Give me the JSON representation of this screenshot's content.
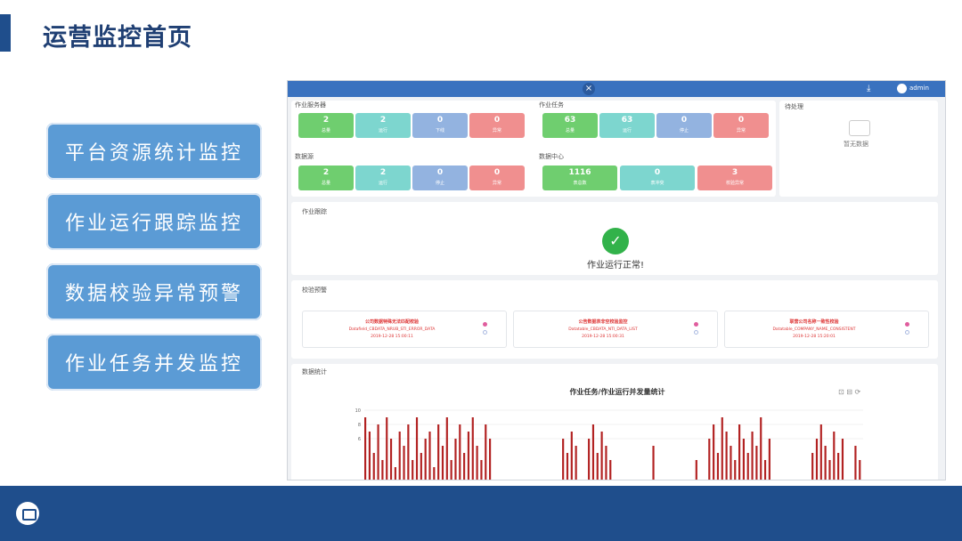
{
  "page": {
    "title": "运营监控首页"
  },
  "menu": [
    "平台资源统计监控",
    "作业运行跟踪监控",
    "数据校验异常预警",
    "作业任务并发监控"
  ],
  "app": {
    "close": "×",
    "download": "⤓",
    "user": "admin",
    "job_server": {
      "title": "作业服务器",
      "tiles": [
        {
          "value": "2",
          "label": "总量"
        },
        {
          "value": "2",
          "label": "运行"
        },
        {
          "value": "0",
          "label": "下线"
        },
        {
          "value": "0",
          "label": "异常"
        }
      ]
    },
    "job_task": {
      "title": "作业任务",
      "tiles": [
        {
          "value": "63",
          "label": "总量"
        },
        {
          "value": "63",
          "label": "运行"
        },
        {
          "value": "0",
          "label": "停止"
        },
        {
          "value": "0",
          "label": "异常"
        }
      ]
    },
    "datasource": {
      "title": "数据源",
      "tiles": [
        {
          "value": "2",
          "label": "总量"
        },
        {
          "value": "2",
          "label": "运行"
        },
        {
          "value": "0",
          "label": "停止"
        },
        {
          "value": "0",
          "label": "异常"
        }
      ]
    },
    "data_center": {
      "title": "数据中心",
      "tiles": [
        {
          "value": "1116",
          "label": "表总数"
        },
        {
          "value": "0",
          "label": "表冲突"
        },
        {
          "value": "3",
          "label": "校验异常"
        }
      ]
    },
    "todo": {
      "title": "待处理",
      "empty": "暂无数据"
    },
    "tracking": {
      "title": "作业跟踪",
      "status": "作业运行正常!"
    },
    "validation": {
      "title": "校验预警",
      "cards": [
        {
          "name": "公司数据特殊无法匹配校验",
          "detail": "Datafield_CBDATA_NRUB_STI_ERROR_DATA",
          "time": "2019-12-28 15:00:11"
        },
        {
          "name": "公告数据表非空校验监控",
          "detail": "Datatable_CBDATA_NTI_DATA_LIST",
          "time": "2019-12-28 15:00:31"
        },
        {
          "name": "联营公司名称一致性校验",
          "detail": "Datatable_COMPANY_NAME_CONSISTENT",
          "time": "2019-12-28 15:20:01"
        }
      ]
    },
    "stats": {
      "title": "数据统计",
      "chart_title": "作业任务/作业运行并发量统计",
      "tools": "⊡ ⊟ ⟳"
    }
  },
  "chart_data": {
    "type": "bar",
    "title": "作业任务/作业运行并发量统计",
    "ylim": [
      0,
      10
    ],
    "yticks": [
      "10",
      "8",
      "6"
    ],
    "values": [
      9,
      7,
      4,
      8,
      3,
      9,
      6,
      2,
      7,
      5,
      8,
      3,
      9,
      4,
      6,
      7,
      2,
      8,
      5,
      9,
      3,
      6,
      8,
      4,
      7,
      9,
      5,
      3,
      8,
      6,
      0,
      0,
      0,
      0,
      0,
      0,
      0,
      0,
      0,
      0,
      0,
      0,
      0,
      0,
      0,
      0,
      6,
      4,
      7,
      5,
      0,
      0,
      6,
      8,
      4,
      7,
      5,
      3,
      0,
      0,
      0,
      0,
      0,
      0,
      0,
      0,
      0,
      5,
      0,
      0,
      0,
      0,
      0,
      0,
      0,
      0,
      0,
      3,
      0,
      0,
      6,
      8,
      4,
      9,
      7,
      5,
      3,
      8,
      6,
      4,
      7,
      5,
      9,
      3,
      6,
      0,
      0,
      0,
      0,
      0,
      0,
      0,
      0,
      0,
      4,
      6,
      8,
      5,
      3,
      7,
      4,
      6,
      0,
      0,
      5,
      3
    ]
  },
  "colors": {
    "brand": "#1f4e8c",
    "menu": "#5b9bd5",
    "bar": "#b22222"
  }
}
